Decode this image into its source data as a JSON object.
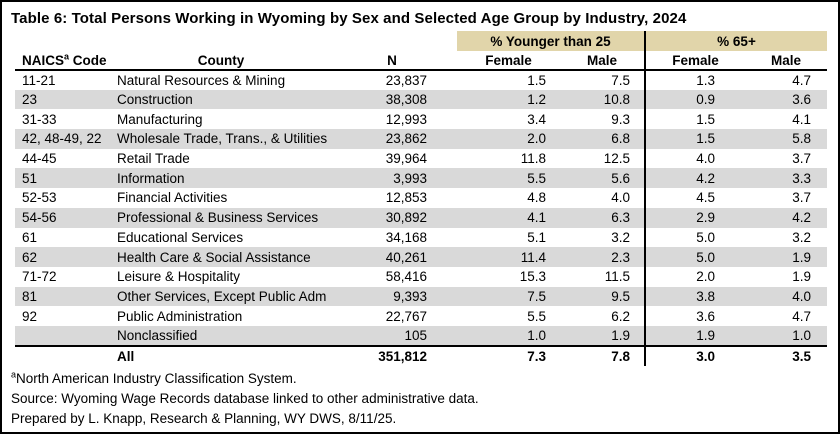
{
  "title": "Table 6: Total Persons Working in Wyoming by Sex and Selected Age Group by Industry, 2024",
  "colors": {
    "group_band": "#e1d5aa",
    "alt_row": "#d9d9d9"
  },
  "table": {
    "group_headers": {
      "younger": "% Younger than 25",
      "older": "% 65+"
    },
    "headers": {
      "naics_prefix": "NAICS",
      "naics_sup": "a",
      "naics_suffix": " Code",
      "county": "County",
      "n": "N",
      "female": "Female",
      "male": "Male"
    },
    "rows": [
      {
        "code": "11-21",
        "industry": "Natural Resources & Mining",
        "n": "23,837",
        "f25": "1.5",
        "m25": "7.5",
        "f65": "1.3",
        "m65": "4.7"
      },
      {
        "code": "23",
        "industry": "Construction",
        "n": "38,308",
        "f25": "1.2",
        "m25": "10.8",
        "f65": "0.9",
        "m65": "3.6"
      },
      {
        "code": "31-33",
        "industry": "Manufacturing",
        "n": "12,993",
        "f25": "3.4",
        "m25": "9.3",
        "f65": "1.5",
        "m65": "4.1"
      },
      {
        "code": "42, 48-49, 22",
        "industry": "Wholesale Trade, Trans., & Utilities",
        "n": "23,862",
        "f25": "2.0",
        "m25": "6.8",
        "f65": "1.5",
        "m65": "5.8"
      },
      {
        "code": "44-45",
        "industry": "Retail Trade",
        "n": "39,964",
        "f25": "11.8",
        "m25": "12.5",
        "f65": "4.0",
        "m65": "3.7"
      },
      {
        "code": "51",
        "industry": "Information",
        "n": "3,993",
        "f25": "5.5",
        "m25": "5.6",
        "f65": "4.2",
        "m65": "3.3"
      },
      {
        "code": "52-53",
        "industry": "Financial Activities",
        "n": "12,853",
        "f25": "4.8",
        "m25": "4.0",
        "f65": "4.5",
        "m65": "3.7"
      },
      {
        "code": "54-56",
        "industry": "Professional & Business Services",
        "n": "30,892",
        "f25": "4.1",
        "m25": "6.3",
        "f65": "2.9",
        "m65": "4.2"
      },
      {
        "code": "61",
        "industry": "Educational Services",
        "n": "34,168",
        "f25": "5.1",
        "m25": "3.2",
        "f65": "5.0",
        "m65": "3.2"
      },
      {
        "code": "62",
        "industry": "Health Care & Social Assistance",
        "n": "40,261",
        "f25": "11.4",
        "m25": "2.3",
        "f65": "5.0",
        "m65": "1.9"
      },
      {
        "code": "71-72",
        "industry": "Leisure & Hospitality",
        "n": "58,416",
        "f25": "15.3",
        "m25": "11.5",
        "f65": "2.0",
        "m65": "1.9"
      },
      {
        "code": "81",
        "industry": "Other Services, Except Public Admin.",
        "n": "9,393",
        "f25": "7.5",
        "m25": "9.5",
        "f65": "3.8",
        "m65": "4.0"
      },
      {
        "code": "92",
        "industry": "Public Administration",
        "n": "22,767",
        "f25": "5.5",
        "m25": "6.2",
        "f65": "3.6",
        "m65": "4.7"
      },
      {
        "code": "",
        "industry": "Nonclassified",
        "n": "105",
        "f25": "1.0",
        "m25": "1.9",
        "f65": "1.9",
        "m65": "1.0"
      }
    ],
    "total": {
      "code": "",
      "industry": "All",
      "n": "351,812",
      "f25": "7.3",
      "m25": "7.8",
      "f65": "3.0",
      "m65": "3.5"
    }
  },
  "footnotes": {
    "note_sup": "a",
    "note_text": "North American Industry Classification System.",
    "source": "Source: Wyoming Wage Records database linked to other administrative data.",
    "prepared": "Prepared by L. Knapp, Research & Planning, WY DWS, 8/11/25."
  }
}
